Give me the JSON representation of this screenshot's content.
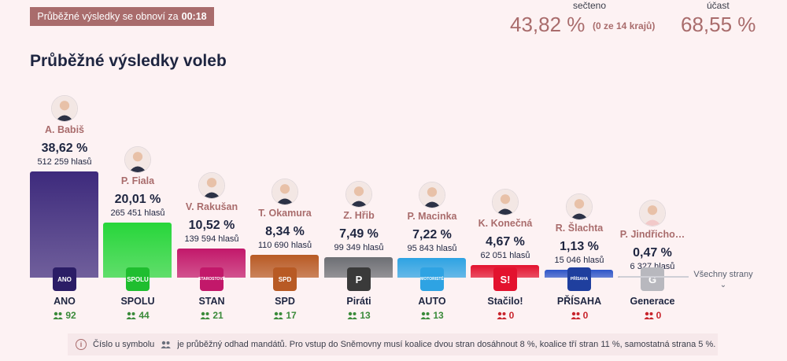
{
  "refresh": {
    "text": "Průběžné výsledky se obnoví za",
    "timer": "00:18"
  },
  "stats": {
    "counted_label": "sečteno",
    "counted_value": "43,82 %",
    "counted_note": "(0 ze 14 krajů)",
    "turnout_label": "účast",
    "turnout_value": "68,55 %"
  },
  "title": "Průběžné výsledky voleb",
  "parties": [
    {
      "leader": "A. Babiš",
      "pct": "38,62 %",
      "votes": "512 259 hlasů",
      "abbr": "ANO",
      "logo": "ANO",
      "seats": "92",
      "color": "#3d2a7c",
      "logo_color": "#2b1d66",
      "seat_color": "#3a8a3a",
      "value": 38.62
    },
    {
      "leader": "P. Fiala",
      "pct": "20,01 %",
      "votes": "265 451 hlasů",
      "abbr": "SPOLU",
      "logo": "SPOLU",
      "seats": "44",
      "color": "#27d63a",
      "logo_color": "#1fbe2f",
      "seat_color": "#3a8a3a",
      "value": 20.01
    },
    {
      "leader": "V. Rakušan",
      "pct": "10,52 %",
      "votes": "139 594 hlasů",
      "abbr": "STAN",
      "logo": "STAROSTOVÉ",
      "seats": "21",
      "color": "#c2186a",
      "logo_color": "#c2186a",
      "seat_color": "#3a8a3a",
      "value": 10.52
    },
    {
      "leader": "T. Okamura",
      "pct": "8,34 %",
      "votes": "110 690 hlasů",
      "abbr": "SPD",
      "logo": "SPD",
      "seats": "17",
      "color": "#b85a24",
      "logo_color": "#b85a24",
      "seat_color": "#3a8a3a",
      "value": 8.34
    },
    {
      "leader": "Z. Hřib",
      "pct": "7,49 %",
      "votes": "99 349 hlasů",
      "abbr": "Piráti",
      "logo": "P",
      "seats": "13",
      "color": "#6d6f74",
      "logo_color": "#3a3a3a",
      "seat_color": "#3a8a3a",
      "value": 7.49
    },
    {
      "leader": "P. Macinka",
      "pct": "7,22 %",
      "votes": "95 843 hlasů",
      "abbr": "AUTO",
      "logo": "MOTORISTÉ",
      "seats": "13",
      "color": "#2ea3e3",
      "logo_color": "#2ea3e3",
      "seat_color": "#3a8a3a",
      "value": 7.22
    },
    {
      "leader": "K. Konečná",
      "pct": "4,67 %",
      "votes": "62 051 hlasů",
      "abbr": "Stačilo!",
      "logo": "S!",
      "seats": "0",
      "color": "#e3122e",
      "logo_color": "#e3122e",
      "seat_color": "#c8242c",
      "value": 4.67
    },
    {
      "leader": "R. Šlachta",
      "pct": "1,13 %",
      "votes": "15 046 hlasů",
      "abbr": "PŘÍSAHA",
      "logo": "PŘÍSAHA",
      "seats": "0",
      "color": "#2d55c8",
      "logo_color": "#1f3f9e",
      "seat_color": "#c8242c",
      "value": 1.13
    },
    {
      "leader": "P. Jindřicho…",
      "pct": "0,47 %",
      "votes": "6 327 hlasů",
      "abbr": "Generace",
      "logo": "G",
      "seats": "0",
      "color": "#b8b8be",
      "logo_color": "#b8b8be",
      "seat_color": "#c8242c",
      "value": 0.47
    }
  ],
  "all_parties": "Všechny strany",
  "note": {
    "before": "Číslo u symbolu",
    "after": "je průběžný odhad mandátů. Pro vstup do Sněmovny musí koalice dvou stran dosáhnout 8 %, koalice tří stran 11 %, samostatná strana 5 %."
  }
}
